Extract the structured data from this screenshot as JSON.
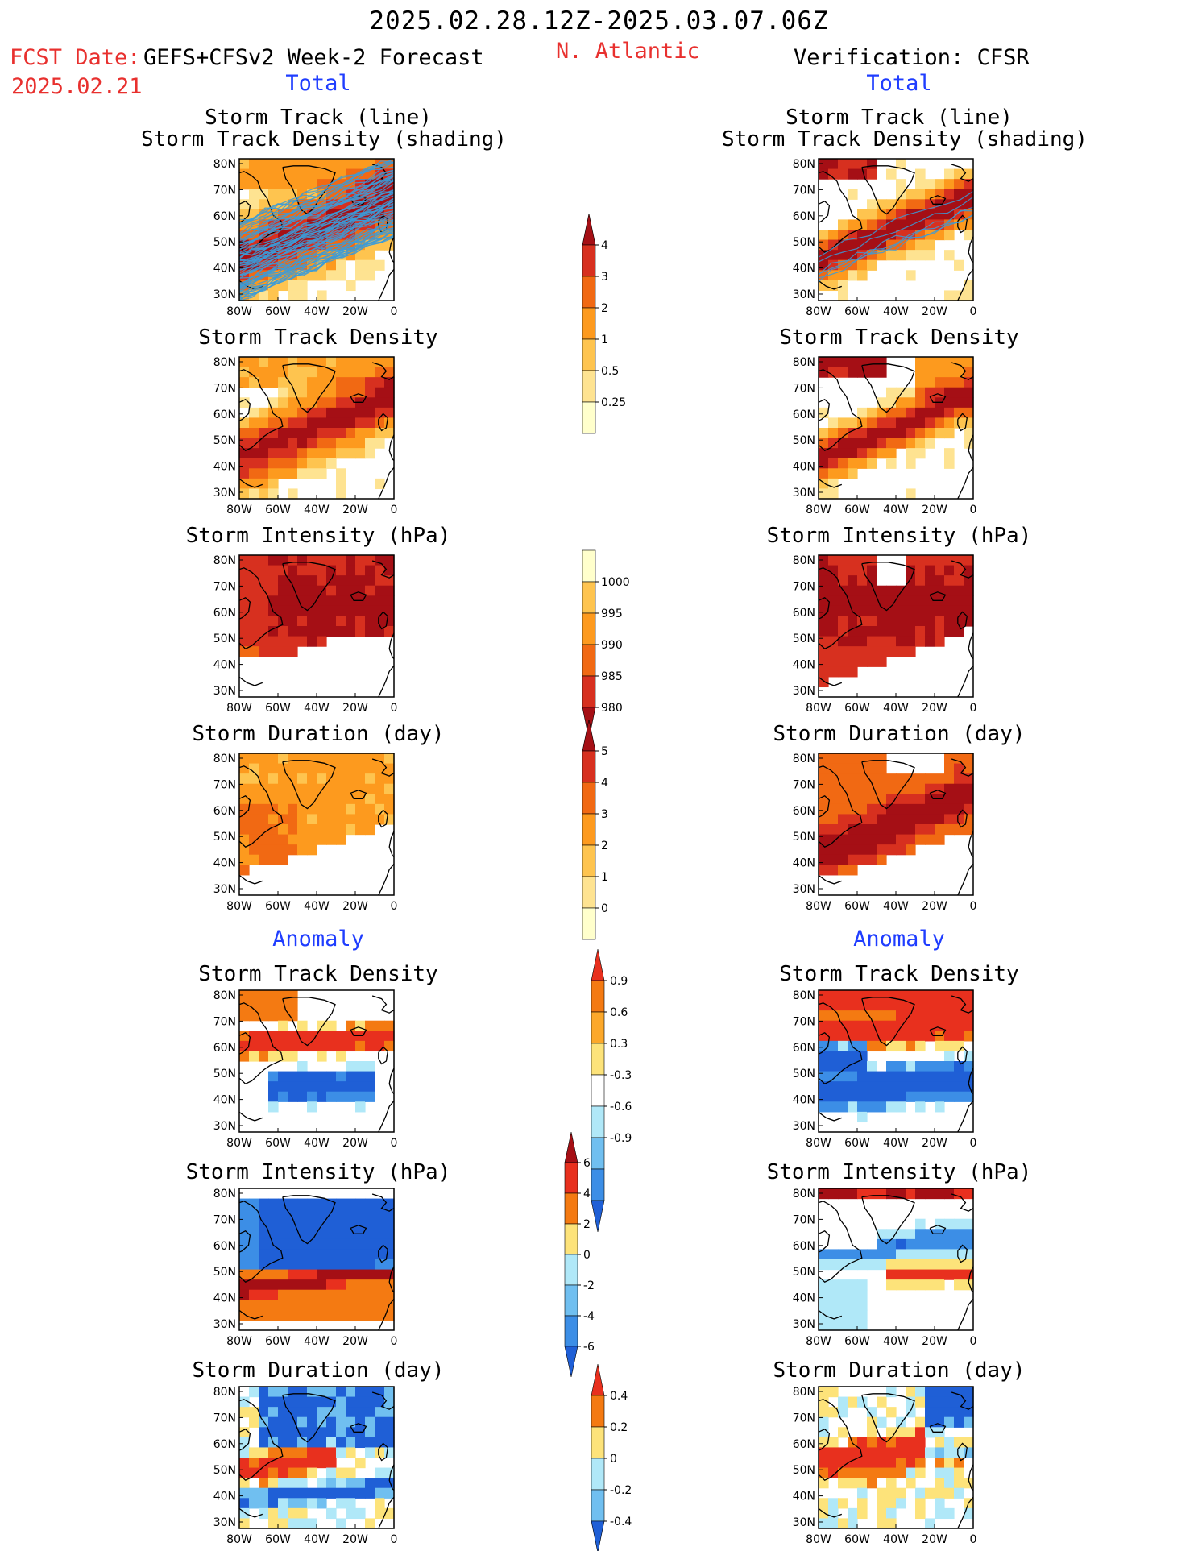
{
  "header": {
    "date_range": "2025.02.28.12Z-2025.03.07.06Z",
    "fcst_prefix": "FCST Date:",
    "fcst_model": "GEFS+CFSv2 Week-2 Forecast",
    "fcst_date": "2025.02.21",
    "region": "N. Atlantic",
    "verification": "Verification: CFSR"
  },
  "sections": {
    "total": "Total",
    "anomaly": "Anomaly"
  },
  "titles": {
    "track_line": "Storm Track (line)",
    "track_shading": "Storm Track Density (shading)",
    "density": "Storm Track Density",
    "intensity": "Storm Intensity (hPa)",
    "duration": "Storm Duration (day)"
  },
  "map_axes": {
    "lat_ticks": [
      "80N",
      "70N",
      "60N",
      "50N",
      "40N",
      "30N"
    ],
    "lon_ticks": [
      "80W",
      "60W",
      "40W",
      "20W",
      "0"
    ]
  },
  "colorbars": {
    "total_density": {
      "labels": [
        "4",
        "3",
        "2",
        "1",
        "0.5",
        "0.25"
      ],
      "colors": [
        "#a50f15",
        "#d7301f",
        "#f16913",
        "#fd9a1e",
        "#fec44f",
        "#fee391",
        "#ffffcc"
      ]
    },
    "total_intensity": {
      "labels": [
        "1000",
        "995",
        "990",
        "985",
        "980"
      ],
      "colors": [
        "#ffffcc",
        "#fec44f",
        "#fd9a1e",
        "#f16913",
        "#d7301f",
        "#a50f15"
      ]
    },
    "total_duration": {
      "labels": [
        "5",
        "4",
        "3",
        "2",
        "1",
        "0"
      ],
      "colors": [
        "#a50f15",
        "#d7301f",
        "#f16913",
        "#fd9a1e",
        "#fec44f",
        "#fee391",
        "#ffffcc"
      ]
    },
    "anom_density": {
      "labels": [
        "0.9",
        "0.6",
        "0.3",
        "-0.3",
        "-0.6",
        "-0.9"
      ],
      "colors": [
        "#e8301e",
        "#f47a12",
        "#fca82a",
        "#fde37a",
        "#ffffff",
        "#b0e8f8",
        "#70bff0",
        "#3c8ee6",
        "#1f5fd6"
      ]
    },
    "anom_intensity": {
      "labels": [
        "6",
        "4",
        "2",
        "0",
        "-2",
        "-4",
        "-6"
      ],
      "colors": [
        "#a50f15",
        "#e8301e",
        "#f47a12",
        "#fde37a",
        "#b0e8f8",
        "#70bff0",
        "#3c8ee6",
        "#1f5fd6"
      ]
    },
    "anom_duration": {
      "labels": [
        "0.4",
        "0.2",
        "0",
        "-0.2",
        "-0.4"
      ],
      "colors": [
        "#e8301e",
        "#f47a12",
        "#fde37a",
        "#b0e8f8",
        "#70bff0",
        "#1f5fd6"
      ]
    }
  },
  "colors": {
    "header_red": "#e8302e",
    "section_blue": "#1f3dff"
  },
  "chart_data": [
    {
      "type": "heatmap",
      "panel": "forecast-track",
      "title": "Storm Track (line) Storm Track Density (shading)",
      "xlim": [
        -80,
        0
      ],
      "ylim": [
        25,
        85
      ],
      "dominant": "orange-red density band from 40N 70W to 65N 20W with dense blue ensemble tracks"
    },
    {
      "type": "heatmap",
      "panel": "verification-track",
      "title": "Storm Track (line) Storm Track Density (shading)",
      "xlim": [
        -80,
        0
      ],
      "ylim": [
        25,
        85
      ],
      "dominant": "dark red band from Labrador Sea to 65N 20W, few observed tracks"
    },
    {
      "type": "heatmap",
      "panel": "forecast-density",
      "title": "Storm Track Density",
      "max_region": "55-65N, 50-20W",
      "max_value": 4
    },
    {
      "type": "heatmap",
      "panel": "verification-density",
      "title": "Storm Track Density",
      "max_region": "55-70N, 50-20W",
      "max_value": 4
    },
    {
      "type": "heatmap",
      "panel": "forecast-intensity",
      "title": "Storm Intensity (hPa)",
      "min_value": 980
    },
    {
      "type": "heatmap",
      "panel": "verification-intensity",
      "title": "Storm Intensity (hPa)",
      "min_value": 980
    },
    {
      "type": "heatmap",
      "panel": "forecast-duration",
      "title": "Storm Duration (day)",
      "range": [
        2,
        3
      ]
    },
    {
      "type": "heatmap",
      "panel": "verification-duration",
      "title": "Storm Duration (day)",
      "range": [
        3,
        5
      ]
    },
    {
      "type": "heatmap",
      "panel": "forecast-density-anomaly",
      "title": "Storm Track Density",
      "positive_region": "55-65N",
      "negative_region": "40-50N"
    },
    {
      "type": "heatmap",
      "panel": "verification-density-anomaly",
      "title": "Storm Track Density",
      "positive_region": "55-70N",
      "negative_region": "35-50N"
    },
    {
      "type": "heatmap",
      "panel": "forecast-intensity-anomaly",
      "title": "Storm Intensity (hPa)",
      "negative_region": "55-80N",
      "positive_region": "40-45N"
    },
    {
      "type": "heatmap",
      "panel": "verification-intensity-anomaly",
      "title": "Storm Intensity (hPa)"
    },
    {
      "type": "heatmap",
      "panel": "forecast-duration-anomaly",
      "title": "Storm Duration (day)"
    },
    {
      "type": "heatmap",
      "panel": "verification-duration-anomaly",
      "title": "Storm Duration (day)"
    }
  ]
}
